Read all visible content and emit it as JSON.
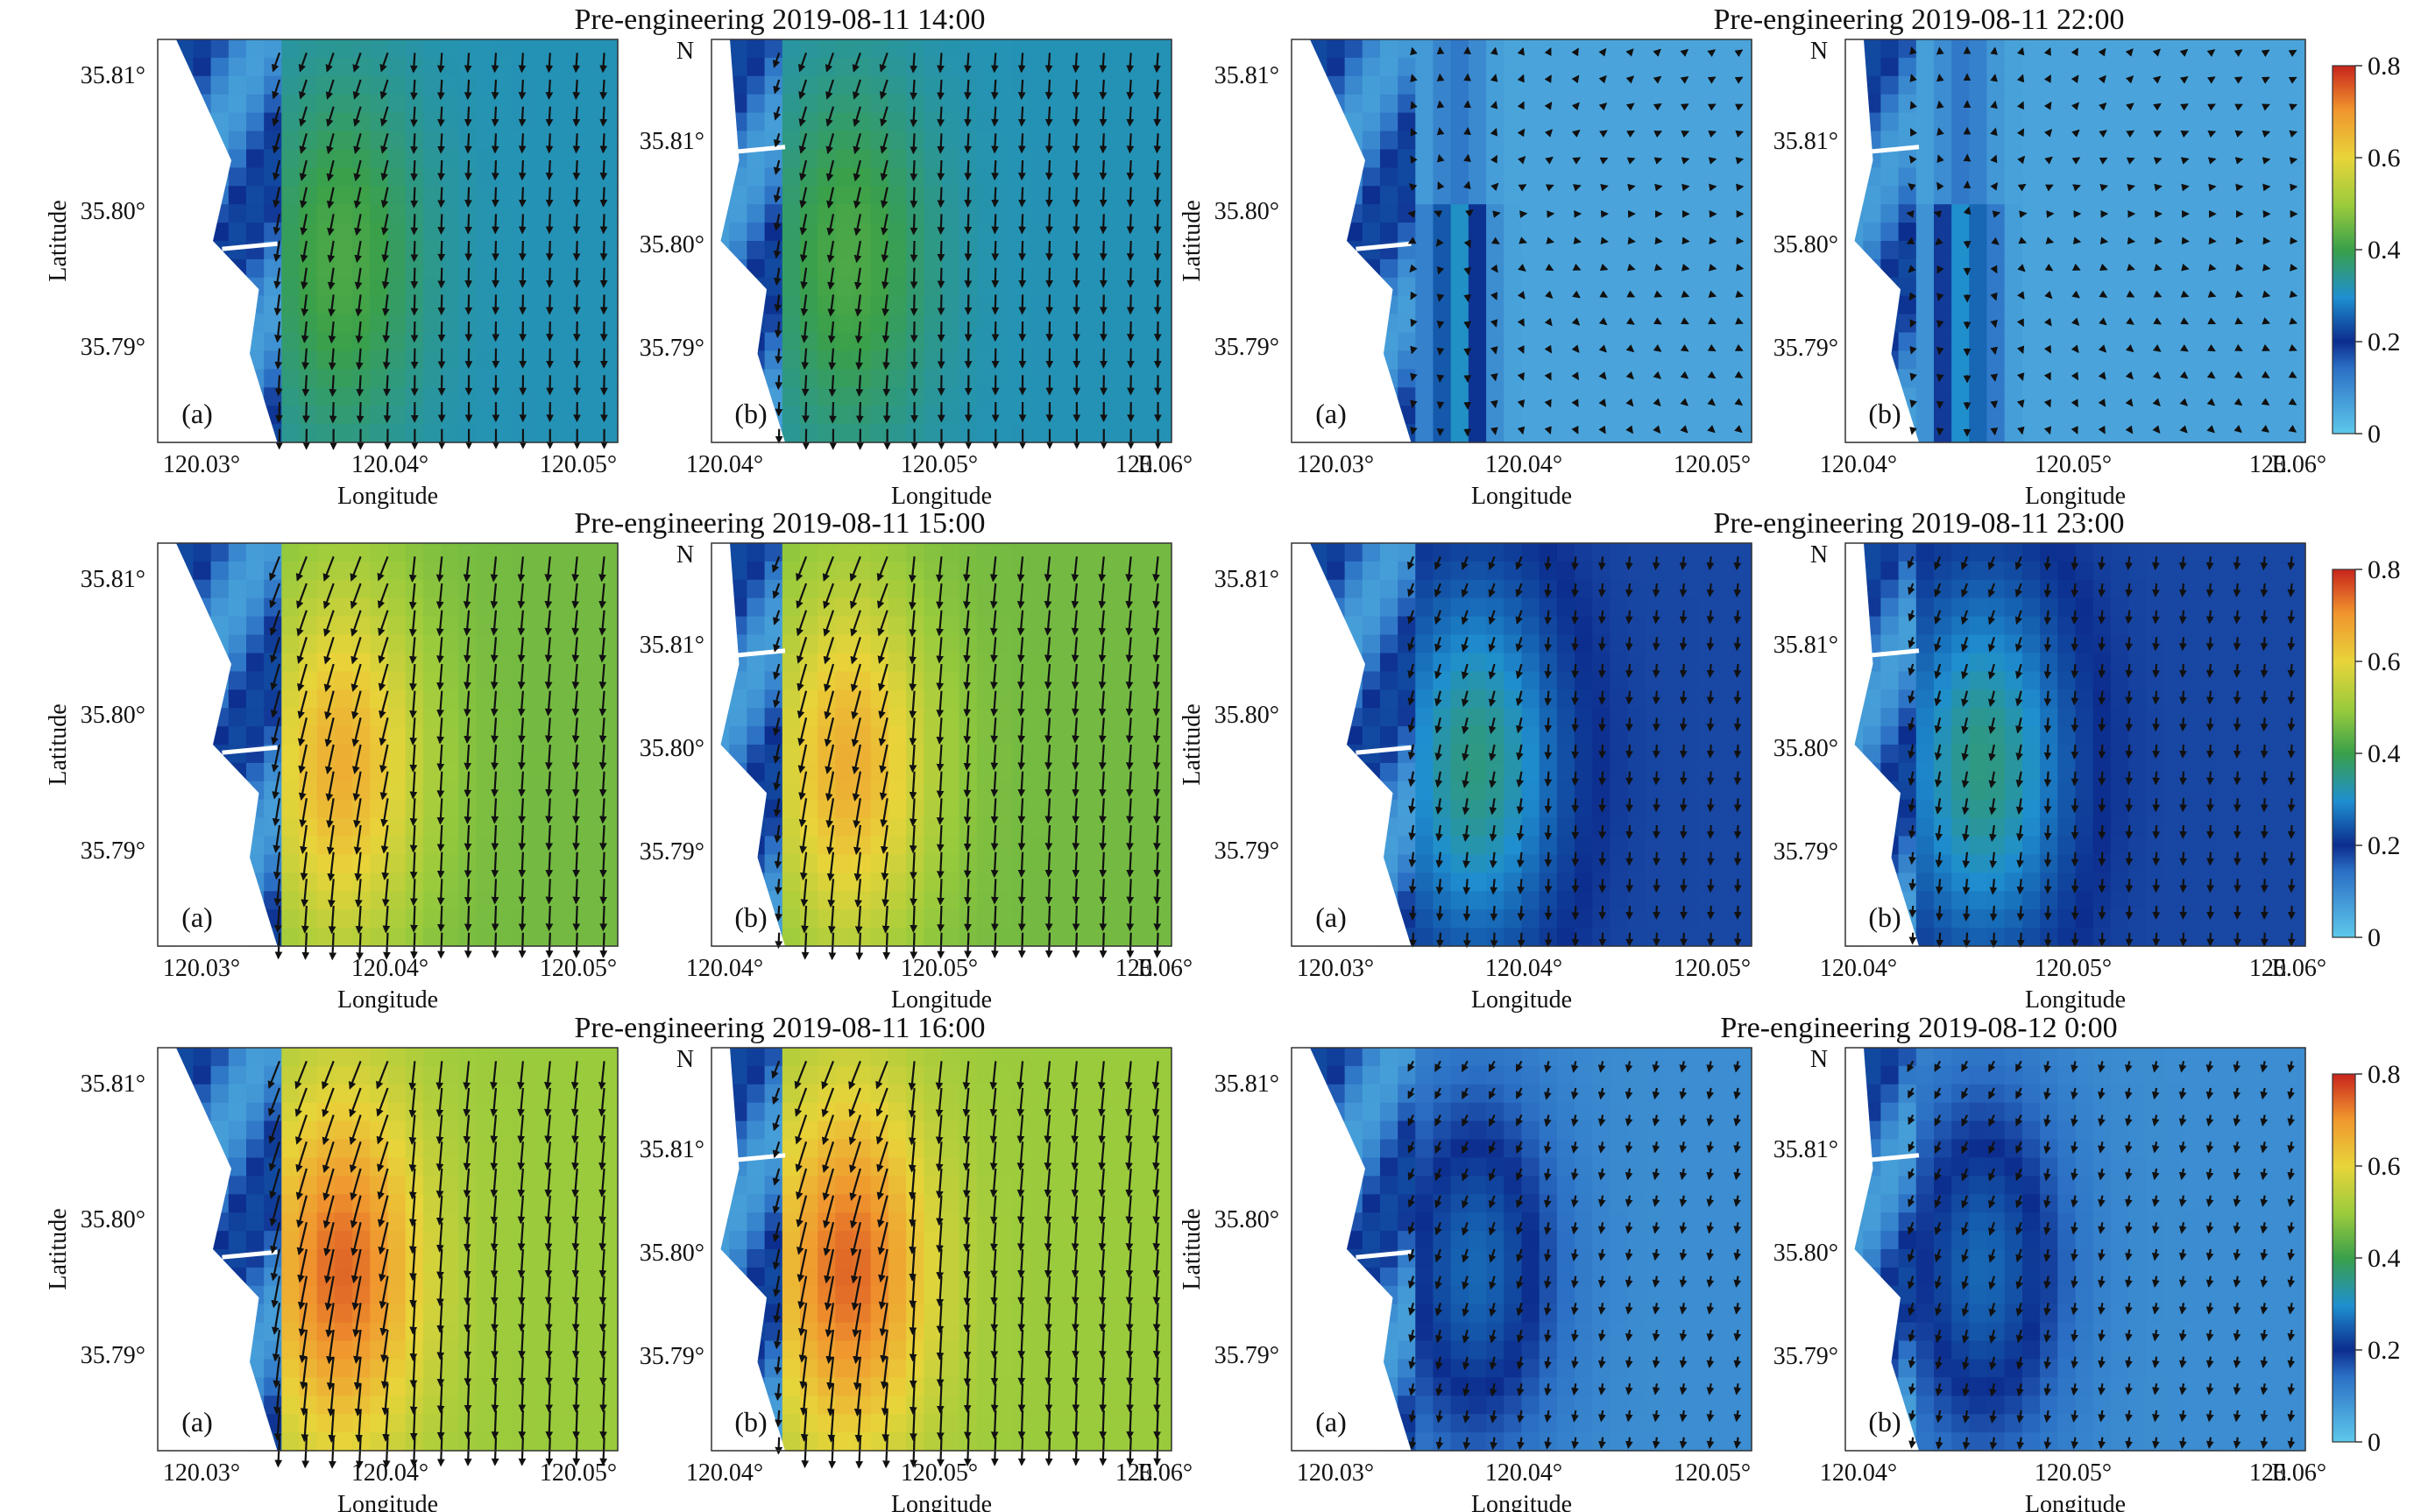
{
  "chart_data": {
    "type": "heatmap",
    "description_units": "current speed with direction vectors",
    "colorbar": {
      "range": [
        0,
        0.8
      ],
      "ticks": [
        "0",
        "0.2",
        "0.4",
        "0.6",
        "0.8"
      ],
      "colors": [
        "#5ec8ea",
        "#2b6fc4",
        "#0c2d8e",
        "#1f8fd0",
        "#3aa04a",
        "#9acb3c",
        "#e8d43a",
        "#f0952e",
        "#c8241c"
      ]
    },
    "north_label": "N",
    "east_label": "E",
    "panel_labels": {
      "a": "(a)",
      "b": "(b)"
    },
    "axis_labels": {
      "lon": "Longitude",
      "lat": "Latitude"
    },
    "a_xticks": [
      "120.03°",
      "120.04°",
      "120.05°"
    ],
    "a_yticks": [
      "35.81°",
      "35.80°",
      "35.79°"
    ],
    "b_xticks": [
      "120.04°",
      "120.05°",
      "120.06°"
    ],
    "b_yticks": [
      "35.81°",
      "35.80°",
      "35.79°"
    ],
    "groups": [
      {
        "title": "Pre-engineering 2019-08-11 14:00",
        "base": 0.32,
        "peak": 0.42,
        "dir": 90,
        "arrow_scale": 1.0,
        "pattern": "southward"
      },
      {
        "title": "Pre-engineering 2019-08-11 15:00",
        "base": 0.46,
        "peak": 0.66,
        "dir": 92,
        "arrow_scale": 1.1,
        "pattern": "southward"
      },
      {
        "title": "Pre-engineering 2019-08-11 16:00",
        "base": 0.5,
        "peak": 0.74,
        "dir": 92,
        "arrow_scale": 1.2,
        "pattern": "southward"
      },
      {
        "title": "Pre-engineering 2019-08-11 22:00",
        "base": 0.06,
        "peak": 0.36,
        "dir": 90,
        "arrow_scale": 0.35,
        "pattern": "diverge"
      },
      {
        "title": "Pre-engineering 2019-08-11 23:00",
        "base": 0.18,
        "peak": 0.36,
        "dir": 92,
        "arrow_scale": 0.8,
        "pattern": "southward"
      },
      {
        "title": "Pre-engineering 2019-08-12 0:00",
        "base": 0.1,
        "peak": 0.26,
        "dir": 98,
        "arrow_scale": 0.75,
        "pattern": "southward"
      }
    ]
  }
}
